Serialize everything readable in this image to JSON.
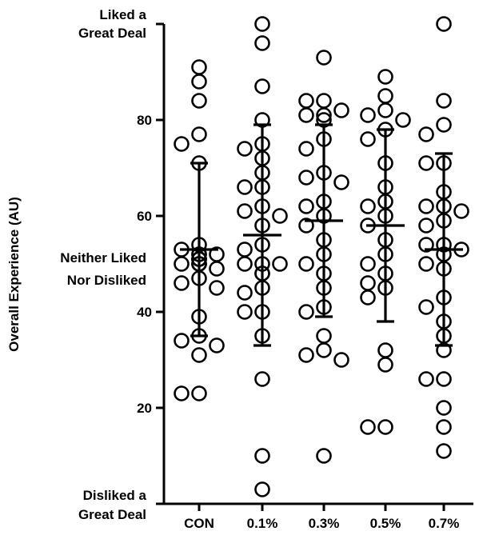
{
  "chart_data": {
    "type": "scatter",
    "ylabel": "Overall Experience (AU)",
    "xlabel": "",
    "ylim": [
      0,
      100
    ],
    "yticks": [
      20,
      40,
      60,
      80
    ],
    "categories": [
      "CON",
      "0.1%",
      "0.3%",
      "0.5%",
      "0.7%"
    ],
    "anchor_labels": [
      {
        "value": 100,
        "lines": [
          "Liked a",
          "Great Deal"
        ]
      },
      {
        "value": 50,
        "lines": [
          "Neither Liked",
          "Nor Disliked"
        ]
      },
      {
        "value": 0,
        "lines": [
          "Disliked a",
          "Great Deal"
        ]
      }
    ],
    "series": [
      {
        "category": "CON",
        "mean": 53,
        "sd_upper": 71,
        "sd_lower": 35,
        "points": [
          91,
          88,
          84,
          77,
          75,
          71,
          54,
          53,
          52,
          52,
          52,
          51,
          51,
          51,
          51,
          50,
          50,
          50,
          50,
          49,
          47,
          46,
          45,
          39,
          35,
          34,
          33,
          31,
          23,
          23
        ]
      },
      {
        "category": "0.1%",
        "mean": 56,
        "sd_upper": 79,
        "sd_lower": 33,
        "points": [
          100,
          96,
          87,
          80,
          75,
          74,
          72,
          69,
          66,
          66,
          62,
          61,
          60,
          58,
          54,
          53,
          50,
          50,
          50,
          48,
          48,
          45,
          44,
          40,
          40,
          35,
          26,
          10,
          3
        ]
      },
      {
        "category": "0.3%",
        "mean": 59,
        "sd_upper": 79,
        "sd_lower": 39,
        "points": [
          93,
          84,
          84,
          82,
          81,
          81,
          80,
          76,
          74,
          69,
          68,
          67,
          63,
          62,
          60,
          58,
          55,
          52,
          50,
          48,
          45,
          41,
          40,
          35,
          32,
          31,
          30,
          10
        ]
      },
      {
        "category": "0.5%",
        "mean": 58,
        "sd_upper": 78,
        "sd_lower": 38,
        "points": [
          89,
          85,
          82,
          81,
          80,
          78,
          76,
          71,
          66,
          63,
          62,
          60,
          58,
          55,
          52,
          50,
          48,
          46,
          45,
          43,
          32,
          29,
          16,
          16
        ]
      },
      {
        "category": "0.7%",
        "mean": 53,
        "sd_upper": 73,
        "sd_lower": 33,
        "points": [
          100,
          84,
          79,
          77,
          71,
          71,
          65,
          62,
          62,
          61,
          59,
          58,
          54,
          54,
          53,
          52,
          50,
          49,
          43,
          41,
          38,
          35,
          32,
          26,
          26,
          20,
          16,
          11
        ]
      }
    ]
  }
}
